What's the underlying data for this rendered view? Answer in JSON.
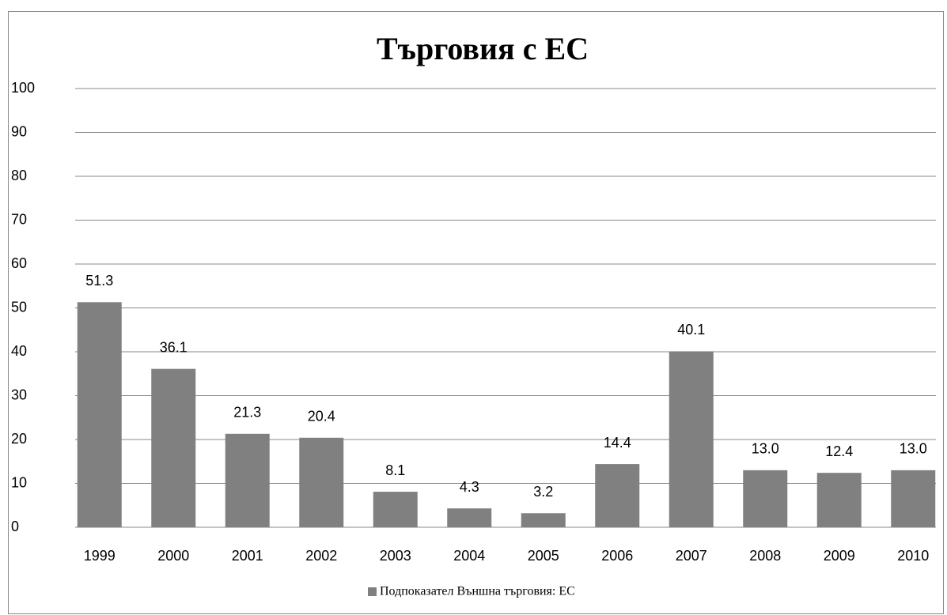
{
  "chart_data": {
    "type": "bar",
    "title": "Търговия с ЕС",
    "categories": [
      "1999",
      "2000",
      "2001",
      "2002",
      "2003",
      "2004",
      "2005",
      "2006",
      "2007",
      "2008",
      "2009",
      "2010"
    ],
    "series": [
      {
        "name": "Подпоказател Външна търговия: ЕС",
        "color": "#808080",
        "values": [
          51.3,
          36.1,
          21.3,
          20.4,
          8.1,
          4.3,
          3.2,
          14.4,
          40.1,
          13.0,
          12.4,
          13.0
        ],
        "value_labels": [
          "51.3",
          "36.1",
          "21.3",
          "20.4",
          "8.1",
          "4.3",
          "3.2",
          "14.4",
          "40.1",
          "13.0",
          "12.4",
          "13.0"
        ]
      }
    ],
    "ylim": [
      0,
      100
    ],
    "yticks": [
      0,
      10,
      20,
      30,
      40,
      50,
      60,
      70,
      80,
      90,
      100
    ],
    "grid": true,
    "legend": "bottom"
  }
}
